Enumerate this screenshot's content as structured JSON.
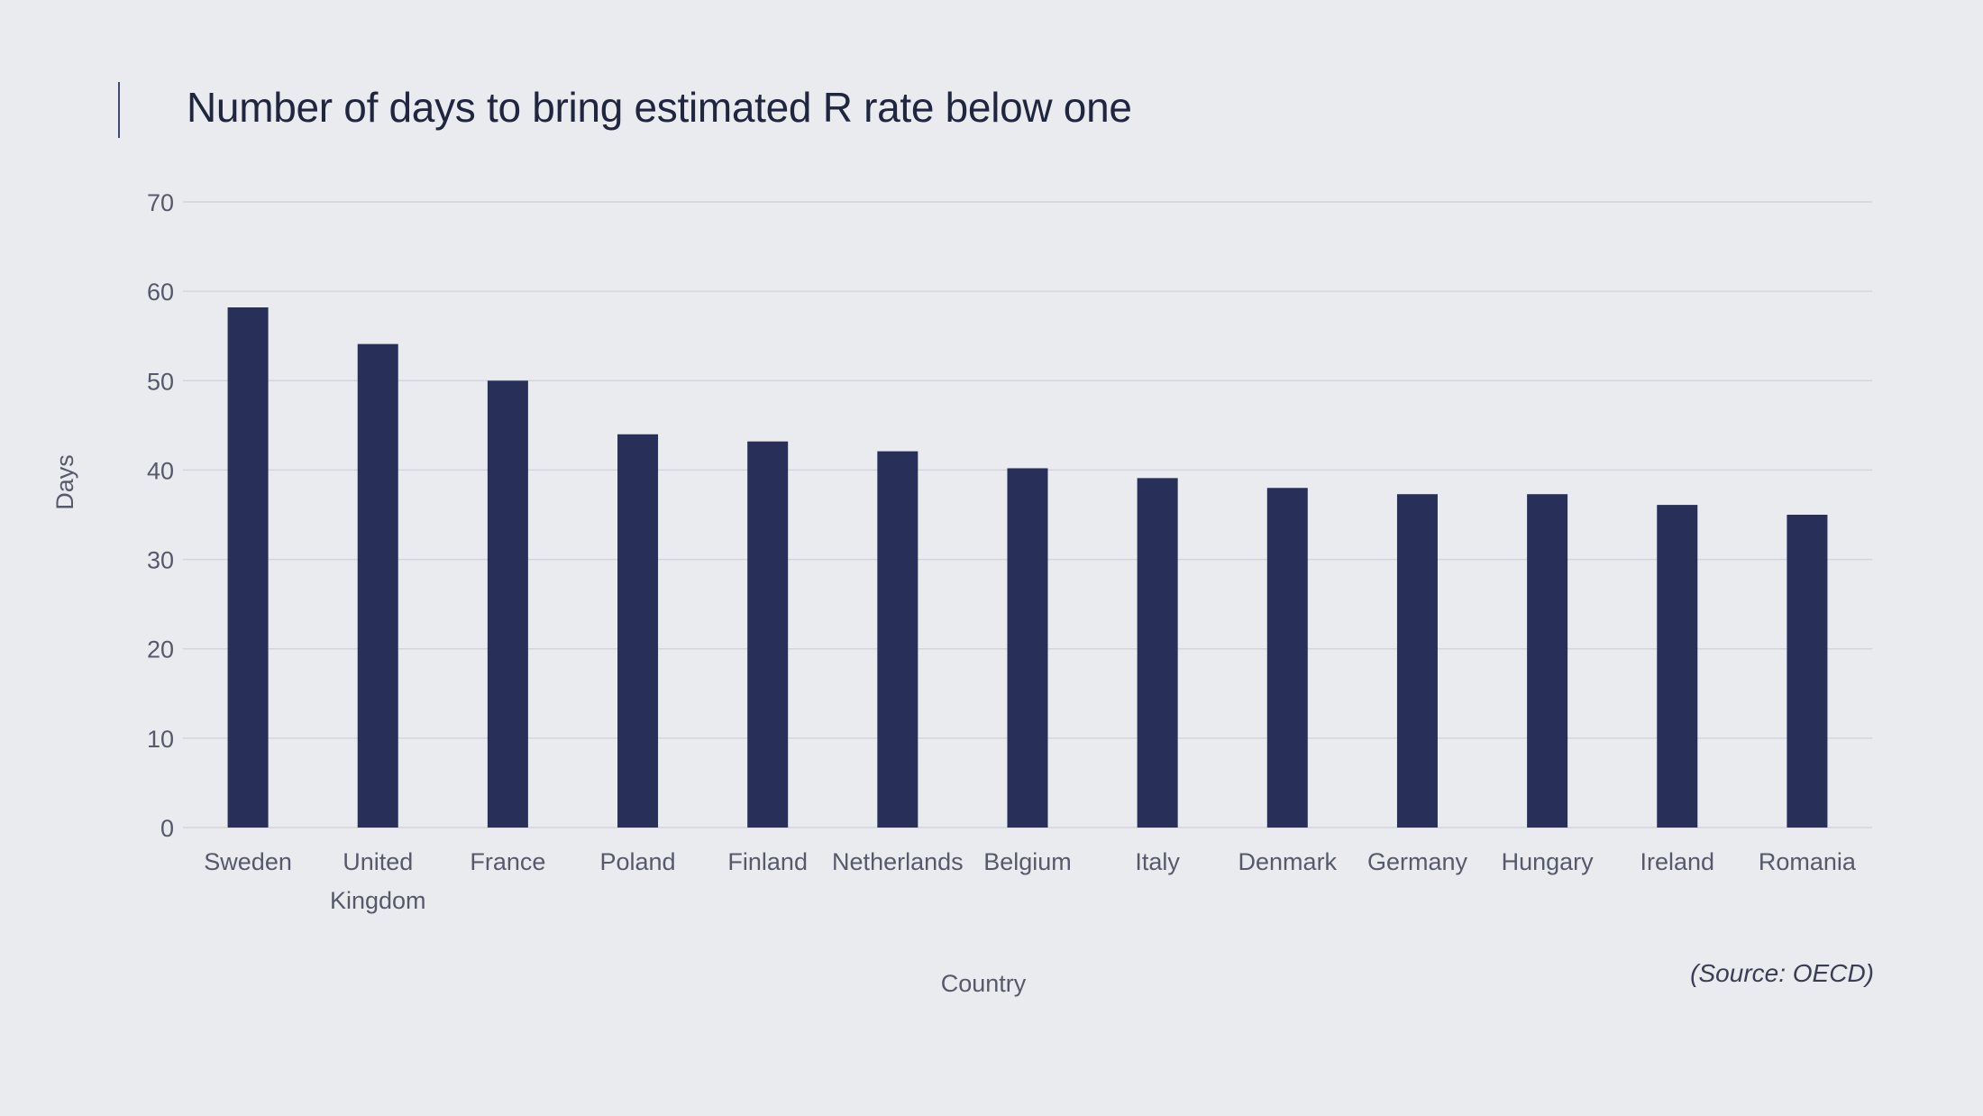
{
  "chart_data": {
    "type": "bar",
    "title": "Number of days to bring estimated R rate below one",
    "xlabel": "Country",
    "ylabel": "Days",
    "ylim": [
      0,
      70
    ],
    "yticks": [
      0,
      10,
      20,
      30,
      40,
      50,
      60,
      70
    ],
    "categories": [
      [
        "Sweden"
      ],
      [
        "United",
        "Kingdom"
      ],
      [
        "France"
      ],
      [
        "Poland"
      ],
      [
        "Finland"
      ],
      [
        "Netherlands"
      ],
      [
        "Belgium"
      ],
      [
        "Italy"
      ],
      [
        "Denmark"
      ],
      [
        "Germany"
      ],
      [
        "Hungary"
      ],
      [
        "Ireland"
      ],
      [
        "Romania"
      ]
    ],
    "values": [
      58.2,
      54.1,
      50,
      44,
      43.2,
      42.1,
      40.2,
      39.1,
      38,
      37.3,
      37.3,
      36.1,
      35
    ],
    "grid": true,
    "legend": "none",
    "bar_color": "#283059",
    "grid_color": "#d3d5dc",
    "source": "(Source: OECD)"
  }
}
